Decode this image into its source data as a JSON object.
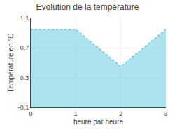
{
  "chart_data": {
    "type": "area",
    "title": "Evolution de la température",
    "xlabel": "heure par heure",
    "ylabel": "Température en °C",
    "x": [
      0,
      1,
      2,
      3
    ],
    "values": [
      0.95,
      0.95,
      0.45,
      0.95
    ],
    "xlim": [
      0,
      3
    ],
    "ylim": [
      -0.1,
      1.1
    ],
    "xticks": [
      0,
      1,
      2,
      3
    ],
    "yticks": [
      -0.1,
      0.3,
      0.7,
      1.1
    ],
    "color": "#5bc8e0",
    "line_style": "dotted",
    "grid": true
  }
}
